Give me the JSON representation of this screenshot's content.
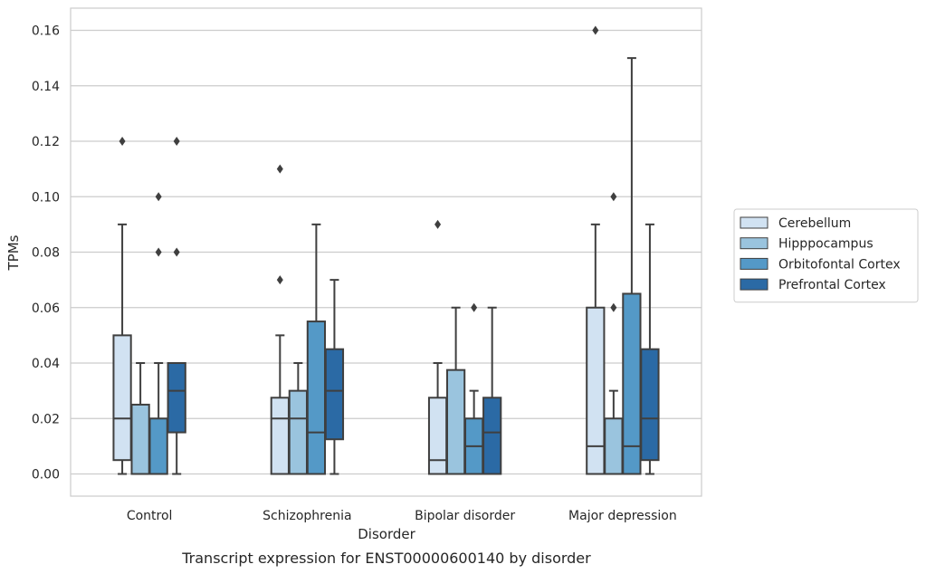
{
  "chart_data": {
    "type": "boxplot",
    "caption": "Transcript expression for ENST00000600140 by disorder",
    "xlabel": "Disorder",
    "ylabel": "TPMs",
    "ylim": [
      -0.008,
      0.168
    ],
    "yticks": [
      0.0,
      0.02,
      0.04,
      0.06,
      0.08,
      0.1,
      0.12,
      0.14,
      0.16
    ],
    "ytick_labels": [
      "0.00",
      "0.02",
      "0.04",
      "0.06",
      "0.08",
      "0.10",
      "0.12",
      "0.14",
      "0.16"
    ],
    "grid": "horizontal",
    "legend_position": "right",
    "categories": [
      "Control",
      "Schizophrenia",
      "Bipolar disorder",
      "Major depression"
    ],
    "series": [
      {
        "name": "Cerebellum",
        "color": "#d1e2f2",
        "boxes": [
          {
            "whisker_low": 0.0,
            "q1": 0.005,
            "median": 0.02,
            "q3": 0.05,
            "whisker_high": 0.09,
            "outliers": [
              0.12
            ]
          },
          {
            "whisker_low": 0.0,
            "q1": 0.0,
            "median": 0.02,
            "q3": 0.0275,
            "whisker_high": 0.05,
            "outliers": [
              0.07,
              0.11
            ]
          },
          {
            "whisker_low": 0.0,
            "q1": 0.0,
            "median": 0.005,
            "q3": 0.0275,
            "whisker_high": 0.04,
            "outliers": [
              0.09
            ]
          },
          {
            "whisker_low": 0.0,
            "q1": 0.0,
            "median": 0.01,
            "q3": 0.06,
            "whisker_high": 0.09,
            "outliers": [
              0.16
            ]
          }
        ]
      },
      {
        "name": "Hipppocampus",
        "color": "#9ac4de",
        "boxes": [
          {
            "whisker_low": 0.0,
            "q1": 0.0,
            "median": 0.0,
            "q3": 0.025,
            "whisker_high": 0.04,
            "outliers": []
          },
          {
            "whisker_low": 0.0,
            "q1": 0.0,
            "median": 0.02,
            "q3": 0.03,
            "whisker_high": 0.04,
            "outliers": []
          },
          {
            "whisker_low": 0.0,
            "q1": 0.0,
            "median": 0.0,
            "q3": 0.0375,
            "whisker_high": 0.06,
            "outliers": []
          },
          {
            "whisker_low": 0.0,
            "q1": 0.0,
            "median": 0.0,
            "q3": 0.02,
            "whisker_high": 0.03,
            "outliers": [
              0.06,
              0.1
            ]
          }
        ]
      },
      {
        "name": "Orbitofontal Cortex",
        "color": "#5499c7",
        "boxes": [
          {
            "whisker_low": 0.0,
            "q1": 0.0,
            "median": 0.0,
            "q3": 0.02,
            "whisker_high": 0.04,
            "outliers": [
              0.08,
              0.1
            ]
          },
          {
            "whisker_low": 0.0,
            "q1": 0.0,
            "median": 0.015,
            "q3": 0.055,
            "whisker_high": 0.09,
            "outliers": []
          },
          {
            "whisker_low": 0.0,
            "q1": 0.0,
            "median": 0.01,
            "q3": 0.02,
            "whisker_high": 0.03,
            "outliers": [
              0.06
            ]
          },
          {
            "whisker_low": 0.0,
            "q1": 0.0,
            "median": 0.01,
            "q3": 0.065,
            "whisker_high": 0.15,
            "outliers": []
          }
        ]
      },
      {
        "name": "Prefrontal Cortex",
        "color": "#2b6aa5",
        "boxes": [
          {
            "whisker_low": 0.0,
            "q1": 0.015,
            "median": 0.03,
            "q3": 0.04,
            "whisker_high": 0.04,
            "outliers": [
              0.08,
              0.12
            ]
          },
          {
            "whisker_low": 0.0,
            "q1": 0.0125,
            "median": 0.03,
            "q3": 0.045,
            "whisker_high": 0.07,
            "outliers": []
          },
          {
            "whisker_low": 0.0,
            "q1": 0.0,
            "median": 0.015,
            "q3": 0.0275,
            "whisker_high": 0.06,
            "outliers": []
          },
          {
            "whisker_low": 0.0,
            "q1": 0.005,
            "median": 0.02,
            "q3": 0.045,
            "whisker_high": 0.09,
            "outliers": []
          }
        ]
      }
    ]
  }
}
